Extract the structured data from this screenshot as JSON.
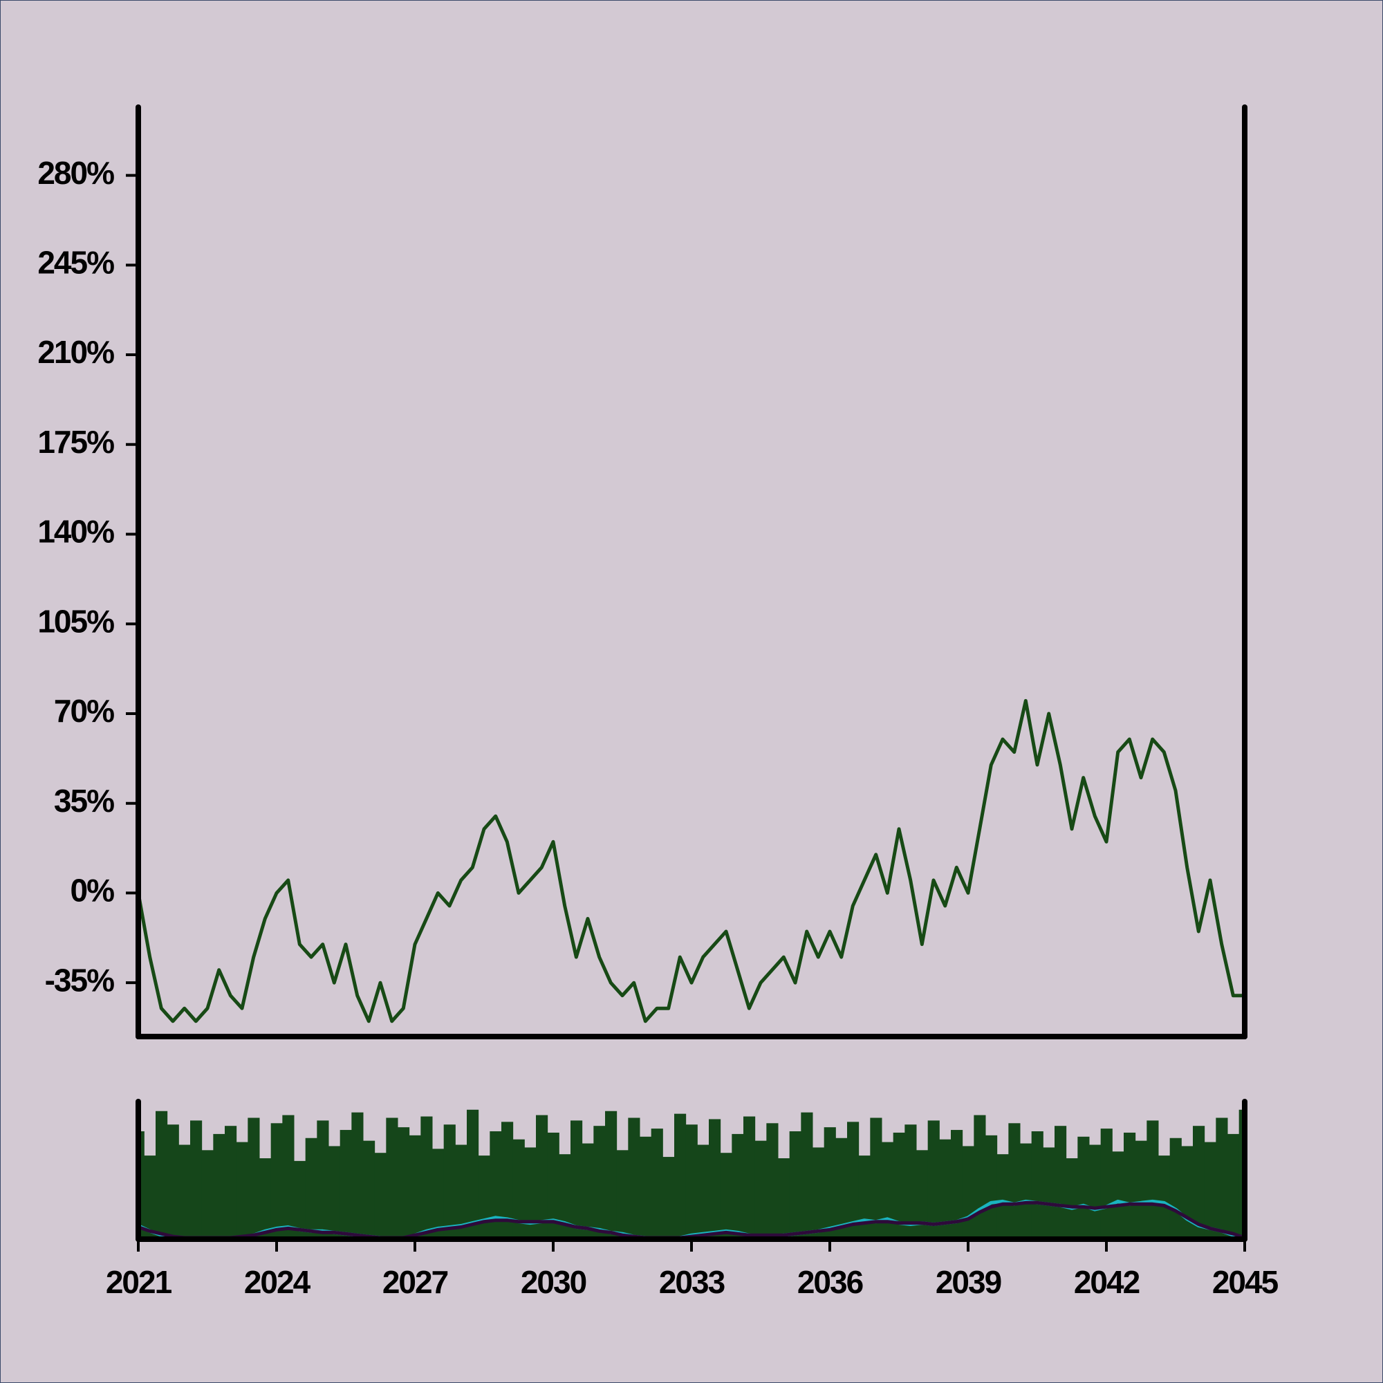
{
  "chart_data": [
    {
      "type": "line",
      "x": [
        2021,
        2021.25,
        2021.5,
        2021.75,
        2022,
        2022.25,
        2022.5,
        2022.75,
        2023,
        2023.25,
        2023.5,
        2023.75,
        2024,
        2024.25,
        2024.5,
        2024.75,
        2025,
        2025.25,
        2025.5,
        2025.75,
        2026,
        2026.25,
        2026.5,
        2026.75,
        2027,
        2027.25,
        2027.5,
        2027.75,
        2028,
        2028.25,
        2028.5,
        2028.75,
        2029,
        2029.25,
        2029.5,
        2029.75,
        2030,
        2030.25,
        2030.5,
        2030.75,
        2031,
        2031.25,
        2031.5,
        2031.75,
        2032,
        2032.25,
        2032.5,
        2032.75,
        2033,
        2033.25,
        2033.5,
        2033.75,
        2034,
        2034.25,
        2034.5,
        2034.75,
        2035,
        2035.25,
        2035.5,
        2035.75,
        2036,
        2036.25,
        2036.5,
        2036.75,
        2037,
        2037.25,
        2037.5,
        2037.75,
        2038,
        2038.25,
        2038.5,
        2038.75,
        2039,
        2039.25,
        2039.5,
        2039.75,
        2040,
        2040.25,
        2040.5,
        2040.75,
        2041,
        2041.25,
        2041.5,
        2041.75,
        2042,
        2042.25,
        2042.5,
        2042.75,
        2043,
        2043.25,
        2043.5,
        2043.75,
        2044,
        2044.25,
        2044.5,
        2044.75,
        2045
      ],
      "series": [
        {
          "color": "#174a15",
          "values": [
            0,
            -25,
            -45,
            -50,
            -45,
            -50,
            -45,
            -30,
            -40,
            -45,
            -25,
            -10,
            0,
            5,
            -20,
            -25,
            -20,
            -35,
            -20,
            -40,
            -50,
            -35,
            -50,
            -45,
            -20,
            -10,
            0,
            -5,
            5,
            10,
            25,
            30,
            20,
            0,
            5,
            10,
            20,
            -5,
            -25,
            -10,
            -25,
            -35,
            -40,
            -35,
            -50,
            -45,
            -45,
            -25,
            -35,
            -25,
            -20,
            -15,
            -30,
            -45,
            -35,
            -30,
            -25,
            -35,
            -15,
            -25,
            -15,
            -25,
            -5,
            5,
            15,
            0,
            25,
            5,
            -20,
            5,
            -5,
            10,
            0,
            25,
            50,
            60,
            55,
            75,
            50,
            70,
            50,
            25,
            45,
            30,
            20,
            55,
            60,
            45,
            60,
            55,
            40,
            10,
            -15,
            5,
            -20,
            -40,
            -40
          ]
        }
      ],
      "xlim": [
        2021,
        2045
      ],
      "ylim": [
        -56,
        295
      ],
      "yticks": [
        {
          "value": -35,
          "label": "-35%"
        },
        {
          "value": 0,
          "label": "0%"
        },
        {
          "value": 35,
          "label": "35%"
        },
        {
          "value": 70,
          "label": "70%"
        },
        {
          "value": 105,
          "label": "105%"
        },
        {
          "value": 140,
          "label": "140%"
        },
        {
          "value": 175,
          "label": "175%"
        },
        {
          "value": 210,
          "label": "210%"
        },
        {
          "value": 245,
          "label": "245%"
        },
        {
          "value": 280,
          "label": "280%"
        }
      ]
    },
    {
      "type": "bar",
      "x": [
        2021,
        2021.25,
        2021.5,
        2021.75,
        2022,
        2022.25,
        2022.5,
        2022.75,
        2023,
        2023.25,
        2023.5,
        2023.75,
        2024,
        2024.25,
        2024.5,
        2024.75,
        2025,
        2025.25,
        2025.5,
        2025.75,
        2026,
        2026.25,
        2026.5,
        2026.75,
        2027,
        2027.25,
        2027.5,
        2027.75,
        2028,
        2028.25,
        2028.5,
        2028.75,
        2029,
        2029.25,
        2029.5,
        2029.75,
        2030,
        2030.25,
        2030.5,
        2030.75,
        2031,
        2031.25,
        2031.5,
        2031.75,
        2032,
        2032.25,
        2032.5,
        2032.75,
        2033,
        2033.25,
        2033.5,
        2033.75,
        2034,
        2034.25,
        2034.5,
        2034.75,
        2035,
        2035.25,
        2035.5,
        2035.75,
        2036,
        2036.25,
        2036.5,
        2036.75,
        2037,
        2037.25,
        2037.5,
        2037.75,
        2038,
        2038.25,
        2038.5,
        2038.75,
        2039,
        2039.25,
        2039.5,
        2039.75,
        2040,
        2040.25,
        2040.5,
        2040.75,
        2041,
        2041.25,
        2041.5,
        2041.75,
        2042,
        2042.25,
        2042.5,
        2042.75,
        2043,
        2043.25,
        2043.5,
        2043.75,
        2044,
        2044.25,
        2044.5,
        2044.75,
        2045
      ],
      "series": [
        {
          "type": "bar",
          "color": "#15461a",
          "values": [
            80,
            62,
            95,
            85,
            70,
            88,
            66,
            78,
            84,
            72,
            90,
            60,
            86,
            92,
            58,
            75,
            88,
            69,
            81,
            94,
            73,
            64,
            90,
            83,
            77,
            91,
            67,
            85,
            70,
            96,
            62,
            80,
            87,
            74,
            68,
            92,
            79,
            63,
            88,
            71,
            84,
            95,
            66,
            90,
            76,
            82,
            61,
            93,
            85,
            70,
            89,
            64,
            78,
            91,
            73,
            86,
            60,
            80,
            94,
            68,
            83,
            75,
            87,
            62,
            90,
            72,
            79,
            85,
            66,
            88,
            74,
            81,
            69,
            92,
            77,
            63,
            86,
            71,
            80,
            68,
            84,
            60,
            76,
            70,
            82,
            65,
            79,
            73,
            88,
            62,
            75,
            69,
            84,
            72,
            90,
            78,
            96
          ]
        },
        {
          "type": "line",
          "color": "#1ab4c0",
          "values": [
            10,
            6,
            3,
            1,
            0,
            0,
            1,
            1,
            0,
            1,
            3,
            6,
            8,
            9,
            7,
            6,
            6,
            5,
            4,
            3,
            2,
            1,
            1,
            0,
            3,
            6,
            8,
            9,
            10,
            12,
            14,
            16,
            15,
            13,
            12,
            13,
            14,
            12,
            9,
            8,
            7,
            5,
            4,
            2,
            1,
            0,
            0,
            1,
            3,
            4,
            5,
            6,
            5,
            3,
            2,
            2,
            3,
            4,
            5,
            6,
            8,
            10,
            12,
            14,
            13,
            15,
            12,
            11,
            12,
            11,
            12,
            13,
            16,
            22,
            27,
            28,
            26,
            28,
            27,
            26,
            25,
            23,
            25,
            22,
            24,
            28,
            26,
            27,
            28,
            27,
            22,
            15,
            10,
            8,
            6,
            3,
            1
          ]
        },
        {
          "type": "line",
          "color": "#2e0a3a",
          "values": [
            9,
            6,
            4,
            2,
            1,
            1,
            1,
            1,
            1,
            2,
            3,
            5,
            7,
            8,
            7,
            6,
            5,
            5,
            4,
            3,
            2,
            1,
            1,
            1,
            3,
            5,
            7,
            8,
            9,
            11,
            13,
            14,
            14,
            13,
            13,
            13,
            13,
            11,
            9,
            8,
            6,
            5,
            3,
            2,
            1,
            1,
            1,
            1,
            2,
            3,
            4,
            5,
            4,
            3,
            3,
            3,
            3,
            4,
            5,
            6,
            7,
            9,
            11,
            12,
            13,
            13,
            12,
            12,
            12,
            11,
            12,
            13,
            15,
            20,
            24,
            26,
            26,
            27,
            27,
            26,
            25,
            24,
            24,
            23,
            24,
            25,
            26,
            26,
            26,
            25,
            21,
            16,
            11,
            8,
            6,
            4,
            1
          ]
        }
      ],
      "xlim": [
        2021,
        2045
      ],
      "ylim": [
        0,
        100
      ],
      "xticks": [
        2021,
        2024,
        2027,
        2030,
        2033,
        2036,
        2039,
        2042,
        2045
      ]
    }
  ]
}
